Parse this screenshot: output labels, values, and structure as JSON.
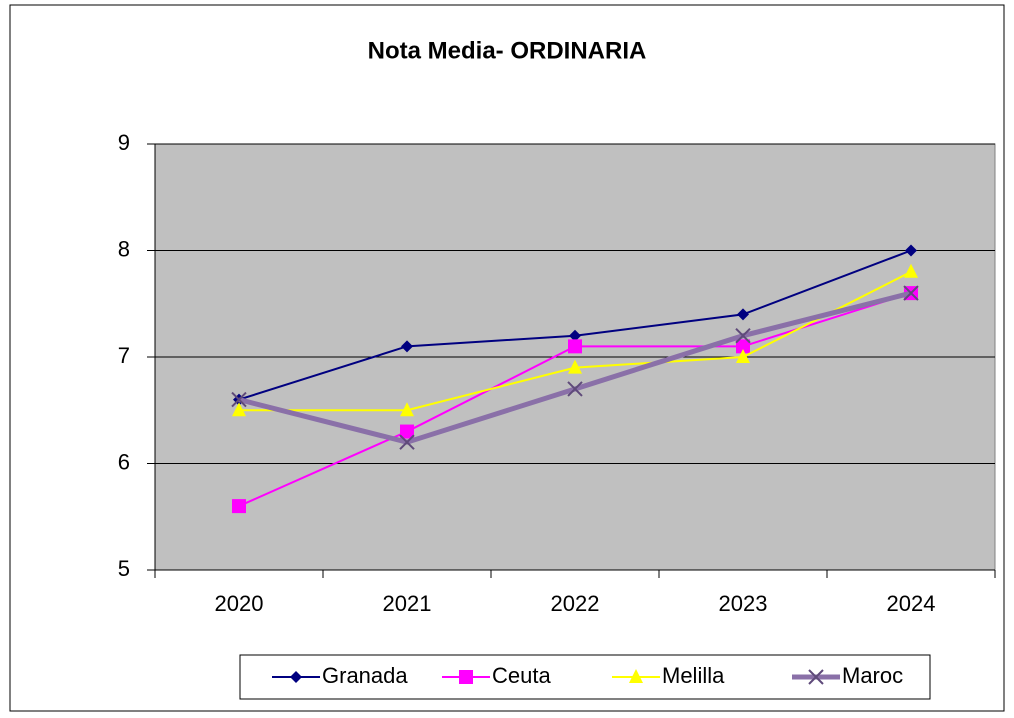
{
  "chart_data": {
    "type": "line",
    "title": "Nota Media- ORDINARIA",
    "categories": [
      "2020",
      "2021",
      "2022",
      "2023",
      "2024"
    ],
    "series": [
      {
        "name": "Granada",
        "color": "#000080",
        "marker": "diamond",
        "values": [
          6.6,
          7.1,
          7.2,
          7.4,
          8.0
        ]
      },
      {
        "name": "Ceuta",
        "color": "#ff00ff",
        "marker": "square",
        "values": [
          5.6,
          6.3,
          7.1,
          7.1,
          7.6
        ]
      },
      {
        "name": "Melilla",
        "color": "#ffff00",
        "marker": "triangle",
        "values": [
          6.5,
          6.5,
          6.9,
          7.0,
          7.8
        ]
      },
      {
        "name": "Maroc",
        "color": "#8a70a8",
        "marker": "x",
        "values": [
          6.6,
          6.2,
          6.7,
          7.2,
          7.6
        ]
      }
    ],
    "ylim": [
      5,
      9
    ],
    "yticks": [
      5,
      6,
      7,
      8,
      9
    ],
    "grid": true,
    "legend": "bottom"
  }
}
